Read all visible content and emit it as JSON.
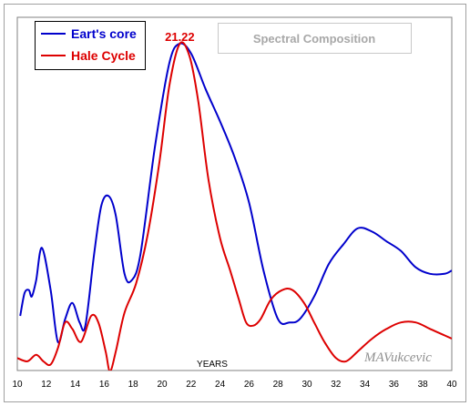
{
  "chart_data": {
    "type": "line",
    "title": "Spectral Composition",
    "xlabel": "YEARS",
    "ylabel": "",
    "xlim": [
      10,
      40
    ],
    "ylim": [
      0,
      1
    ],
    "x_ticks": [
      10,
      12,
      14,
      16,
      18,
      20,
      22,
      24,
      26,
      28,
      30,
      32,
      34,
      36,
      38,
      40
    ],
    "grid": false,
    "legend_position": "top-left",
    "annotations": [
      {
        "text": "21.22",
        "x": 21.22,
        "color": "#dd0000"
      },
      {
        "text": "MAVukcevic"
      }
    ],
    "series": [
      {
        "name": "Eart's core",
        "color": "#0000cc",
        "points": [
          [
            10.2,
            0.16
          ],
          [
            10.5,
            0.23
          ],
          [
            10.8,
            0.24
          ],
          [
            11,
            0.22
          ],
          [
            11.3,
            0.27
          ],
          [
            11.7,
            0.37
          ],
          [
            12.3,
            0.24
          ],
          [
            12.8,
            0.08
          ],
          [
            13.3,
            0.15
          ],
          [
            13.8,
            0.2
          ],
          [
            14.3,
            0.14
          ],
          [
            14.7,
            0.13
          ],
          [
            15.3,
            0.35
          ],
          [
            15.8,
            0.5
          ],
          [
            16.3,
            0.53
          ],
          [
            16.8,
            0.47
          ],
          [
            17.4,
            0.29
          ],
          [
            17.9,
            0.27
          ],
          [
            18.5,
            0.35
          ],
          [
            19.5,
            0.68
          ],
          [
            20.5,
            0.94
          ],
          [
            21.2,
            1.0
          ],
          [
            22,
            0.97
          ],
          [
            23,
            0.86
          ],
          [
            24,
            0.76
          ],
          [
            25,
            0.65
          ],
          [
            26,
            0.51
          ],
          [
            27,
            0.3
          ],
          [
            28,
            0.15
          ],
          [
            28.8,
            0.14
          ],
          [
            29.5,
            0.15
          ],
          [
            30.5,
            0.22
          ],
          [
            31.5,
            0.32
          ],
          [
            32.5,
            0.38
          ],
          [
            33.5,
            0.43
          ],
          [
            34.5,
            0.42
          ],
          [
            35.5,
            0.39
          ],
          [
            36.5,
            0.36
          ],
          [
            37.5,
            0.31
          ],
          [
            38.5,
            0.29
          ],
          [
            39.5,
            0.29
          ],
          [
            40,
            0.3
          ]
        ]
      },
      {
        "name": "Hale Cycle",
        "color": "#dd0000",
        "points": [
          [
            10,
            0.03
          ],
          [
            10.7,
            0.02
          ],
          [
            11.3,
            0.04
          ],
          [
            11.8,
            0.02
          ],
          [
            12.3,
            0.01
          ],
          [
            12.8,
            0.06
          ],
          [
            13.3,
            0.14
          ],
          [
            13.8,
            0.12
          ],
          [
            14.4,
            0.08
          ],
          [
            15.1,
            0.16
          ],
          [
            15.6,
            0.14
          ],
          [
            16.1,
            0.05
          ],
          [
            16.4,
            -0.01
          ],
          [
            16.8,
            0.05
          ],
          [
            17.4,
            0.17
          ],
          [
            18.2,
            0.26
          ],
          [
            19,
            0.41
          ],
          [
            19.8,
            0.63
          ],
          [
            20.5,
            0.87
          ],
          [
            21.22,
            1.0
          ],
          [
            21.9,
            0.96
          ],
          [
            22.5,
            0.82
          ],
          [
            23.2,
            0.58
          ],
          [
            24,
            0.4
          ],
          [
            24.7,
            0.3
          ],
          [
            25.3,
            0.21
          ],
          [
            25.8,
            0.14
          ],
          [
            26.3,
            0.13
          ],
          [
            26.8,
            0.15
          ],
          [
            27.5,
            0.21
          ],
          [
            28.3,
            0.24
          ],
          [
            29,
            0.24
          ],
          [
            29.8,
            0.2
          ],
          [
            30.5,
            0.14
          ],
          [
            31.2,
            0.08
          ],
          [
            32,
            0.03
          ],
          [
            32.7,
            0.02
          ],
          [
            33.5,
            0.05
          ],
          [
            34.5,
            0.09
          ],
          [
            35.5,
            0.12
          ],
          [
            36.5,
            0.14
          ],
          [
            37.5,
            0.14
          ],
          [
            38.5,
            0.12
          ],
          [
            39.5,
            0.1
          ],
          [
            40,
            0.09
          ]
        ]
      }
    ]
  }
}
